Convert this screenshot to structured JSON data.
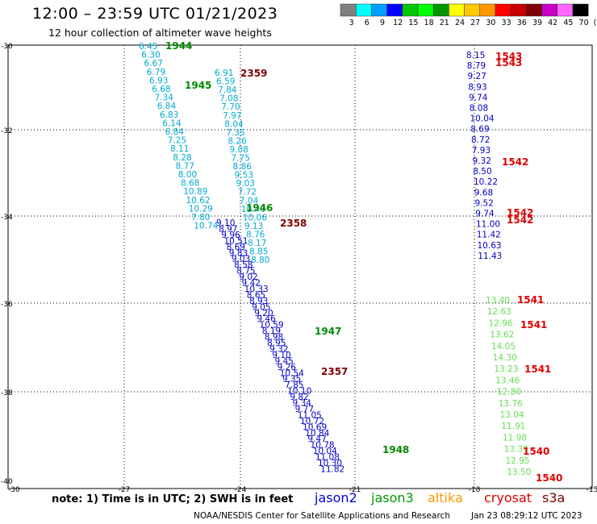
{
  "header": {
    "title": "12:00 – 23:59 UTC 01/21/2023",
    "subtitle": "12 hour collection of altimeter wave heights"
  },
  "colorbar": {
    "labels": [
      "3",
      "6",
      "9",
      "12",
      "15",
      "18",
      "21",
      "24",
      "27",
      "30",
      "33",
      "36",
      "39",
      "42",
      "45",
      "70",
      "(ft)"
    ],
    "colors": [
      "#808080",
      "#00ffff",
      "#00a0ff",
      "#0000ff",
      "#00c800",
      "#00ff00",
      "#009600",
      "#ffff00",
      "#ffc800",
      "#ff9600",
      "#ff0000",
      "#c80000",
      "#800000",
      "#c800c8",
      "#ff66ff",
      "#000000"
    ]
  },
  "axes": {
    "lat_labels": [
      "-30",
      "-32",
      "-34",
      "-36",
      "-38",
      "-40"
    ],
    "lon_labels": [
      "-30",
      "-27",
      "-24",
      "-21",
      "-18",
      "-15"
    ],
    "grid": true
  },
  "tracks": [
    {
      "name": "cyan-track-1944",
      "color": "#00aad4",
      "time_label": {
        "text": "1944",
        "color": "#008800"
      },
      "values": [
        "6.45",
        "6.30",
        "6.67",
        "6.79",
        "6.93",
        "6.68",
        "7.34",
        "6.84",
        "6.83",
        "6.14",
        "6.84",
        "7.25",
        "8.11",
        "8.28",
        "8.77",
        "8.00",
        "8.68",
        "10.89",
        "10.62",
        "10.29",
        "7.80",
        "10.74"
      ]
    },
    {
      "name": "cyan-track-1945",
      "color": "#00aad4",
      "time_label": {
        "text": "1945",
        "color": "#008800"
      },
      "values": [
        "6.91",
        "6.59",
        "7.84",
        "7.08",
        "7.70",
        "7.97",
        "8.04",
        "7.35",
        "8.26",
        "9.08",
        "7.75",
        "8.86",
        "9.53",
        "9.03",
        "7.72",
        "7.04",
        "10.40",
        "10.06",
        "9.13",
        "8.76",
        "8.17",
        "8.85",
        "8.80"
      ]
    },
    {
      "name": "blue-track-2358",
      "color": "#0000c8",
      "time_label": {
        "text": "2358",
        "color": "#800000"
      },
      "values": [
        "9.10",
        "8.97",
        "9.96",
        "10.51",
        "8.69",
        "9.83",
        "9.03",
        "8.58",
        "8.75",
        "9.02",
        "9.42",
        "10.33",
        "8.65",
        "8.93",
        "9.05",
        "9.20",
        "9.46",
        "10.59",
        "8.19",
        "8.98",
        "8.95",
        "9.32",
        "9.10",
        "9.45",
        "9.26",
        "10.54",
        "9.35",
        "7.85",
        "10.10",
        "9.82",
        "9.34",
        "9.77",
        "11.05",
        "10.72",
        "10.69",
        "10.84",
        "9.47",
        "10.78",
        "10.04",
        "11.08",
        "10.30",
        "11.82"
      ]
    },
    {
      "name": "right-track-1543",
      "color": "#0000c8",
      "time_label": {
        "text": "1543",
        "color": "#e00000"
      },
      "values": [
        "8.15",
        "8.79",
        "9.27",
        "8.93",
        "9.74",
        "8.08",
        "10.04",
        "8.69",
        "8.72",
        "7.93",
        "9.32",
        "8.50",
        "10.22",
        "9.68",
        "9.52",
        "9.74",
        "11.00",
        "11.42",
        "10.63",
        "11.43"
      ]
    },
    {
      "name": "right-track-1541",
      "color": "#66dd55",
      "time_label": {
        "text": "1541",
        "color": "#e00000"
      },
      "values": [
        "13.40",
        "12.63",
        "12.96",
        "13.62",
        "14.05",
        "14.30",
        "13.23",
        "13.46",
        "12.80",
        "13.76",
        "13.04",
        "11.91",
        "11.98",
        "13.39",
        "12.95",
        "13.50"
      ]
    }
  ],
  "time_labels": [
    "1944",
    "2359",
    "1945",
    "1946",
    "2358",
    "1947",
    "2357",
    "1948",
    "1543",
    "1543",
    "1542",
    "1542",
    "1542",
    "1541",
    "1541",
    "1541",
    "1540",
    "1540"
  ],
  "footer": {
    "note": "note:  1) Time is in UTC;  2) SWH is in feet",
    "legend": [
      {
        "label": "jason2",
        "color": "#0000dd"
      },
      {
        "label": "jason3",
        "color": "#009900"
      },
      {
        "label": "altika",
        "color": "#ff9900"
      },
      {
        "label": "cryosat",
        "color": "#e00000"
      },
      {
        "label": "s3a",
        "color": "#800000"
      }
    ],
    "credit": "NOAA/NESDIS Center for Satellite Applications and Research",
    "timestamp": "Jan 23 08:29:12 UTC 2023"
  }
}
